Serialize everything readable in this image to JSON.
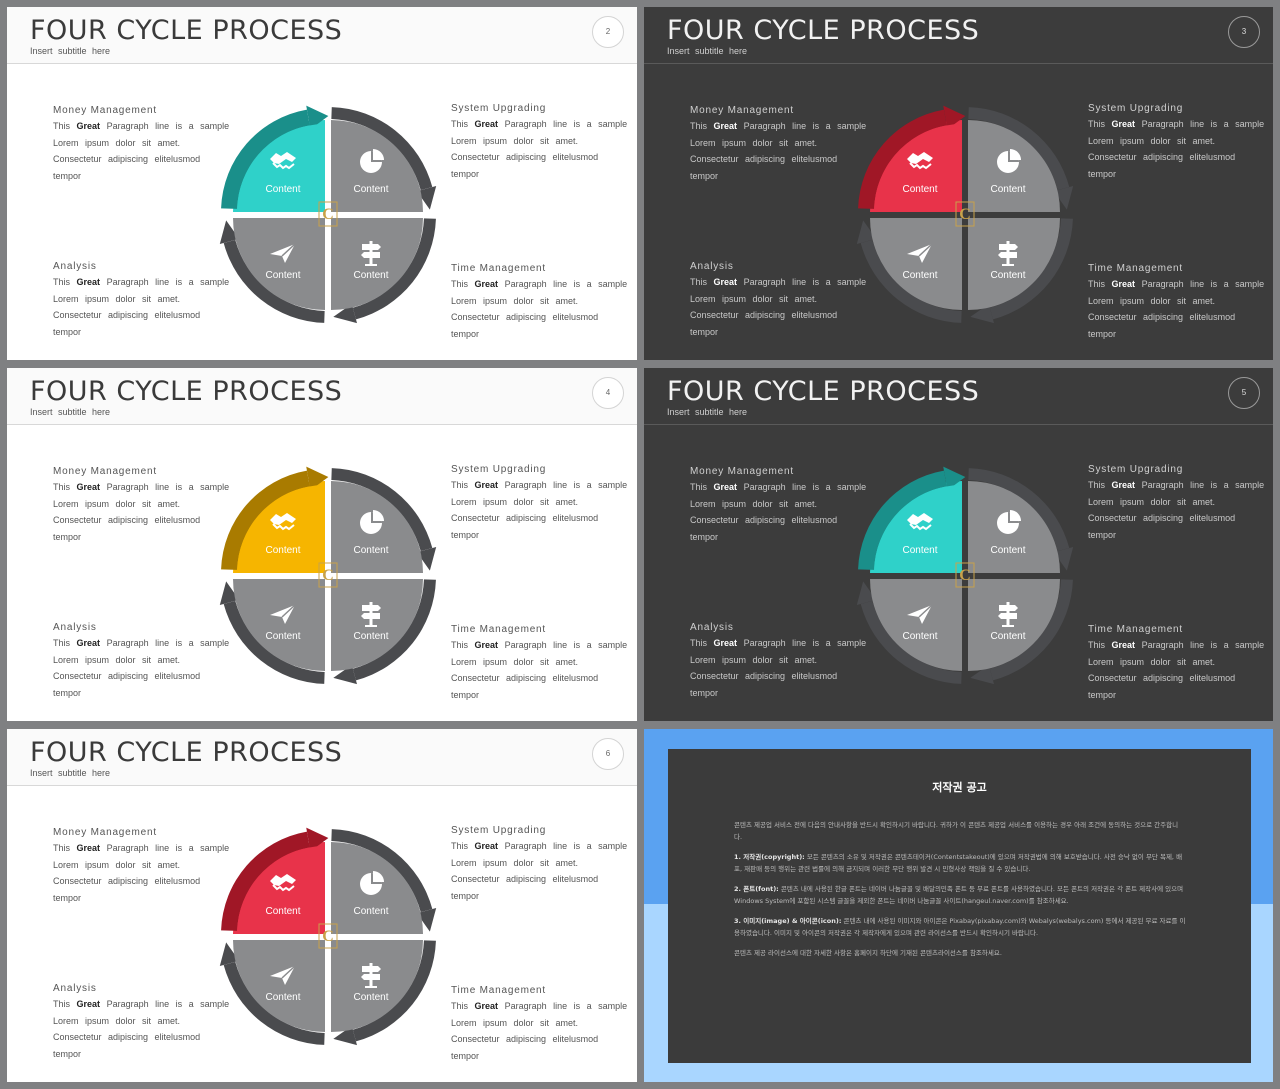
{
  "slides": [
    {
      "number": "2",
      "accent": "#2fd1c9",
      "accent_dark": "#1a8f8a"
    },
    {
      "number": "3",
      "accent": "#e8334a",
      "accent_dark": "#a01726"
    },
    {
      "number": "4",
      "accent": "#f6b500",
      "accent_dark": "#a97b00"
    },
    {
      "number": "5",
      "accent": "#2fd1c9",
      "accent_dark": "#1a8f8a"
    },
    {
      "number": "6",
      "accent": "#e8334a",
      "accent_dark": "#a01726"
    }
  ],
  "common": {
    "title": "FOUR CYCLE PROCESS",
    "subtitle": "Insert subtitle here",
    "money_management": "Money Management",
    "system_upgrading": "System Upgrading",
    "analysis": "Analysis",
    "time_management": "Time Management",
    "line1_pre": "This",
    "line1_bold": "Great",
    "line1_post": "Paragraph line is a sample",
    "line2": "Lorem ipsum dolor sit amet.",
    "line3": "Consectetur adipiscing elitelusmod",
    "line4": "tempor",
    "quadrant_label": "Content",
    "icons": [
      "handshake-icon",
      "pie-chart-icon",
      "paper-plane-icon",
      "signpost-icon"
    ],
    "logo_letter": "C"
  },
  "copyright": {
    "title": "저작권 공고",
    "intro": "콘텐츠 제공업 서비스 전에 다음의 안내사항을 반드시 확인하시기 바랍니다. 귀하가 이 콘텐츠 제공업 서비스를 이용하는 경우 아래 조건에 동의하는 것으로 간주합니다.",
    "p1_label": "1. 저작권(copyright):",
    "p1": "모든 콘텐츠의 소유 및 저작권은 콘텐츠테이커(Contentstakeout)에 있으며 저작권법에 의해 보호받습니다. 사전 승낙 없이 무단 복제, 배포, 재판매 등의 행위는 관련 법률에 의해 금지되며 이러한 무단 행위 발견 시 민형사상 책임을 질 수 있습니다.",
    "p2_label": "2. 폰트(font):",
    "p2": "콘텐츠 내에 사용된 한글 폰트는 네이버 나눔글꼴 및 배달의민족 폰트 등 무료 폰트를 사용하였습니다. 모든 폰트의 저작권은 각 폰트 제작사에 있으며 Windows System에 포함된 시스템 글꼴을 제외한 폰트는 네이버 나눔글꼴 사이트(hangeul.naver.com)를 참조하세요.",
    "p3_label": "3. 이미지(image) & 아이콘(icon):",
    "p3": "콘텐츠 내에 사용된 이미지와 아이콘은 Pixabay(pixabay.com)와 Webalys(webalys.com) 등에서 제공된 무료 자료를 이용하였습니다. 이미지 및 아이콘의 저작권은 각 제작자에게 있으며 관련 라이선스를 반드시 확인하시기 바랍니다.",
    "closing": "콘텐츠 제공 라이선스에 대한 자세한 사항은 홈페이지 하단에 기재된 콘텐츠라이선스를 참조하세요."
  }
}
